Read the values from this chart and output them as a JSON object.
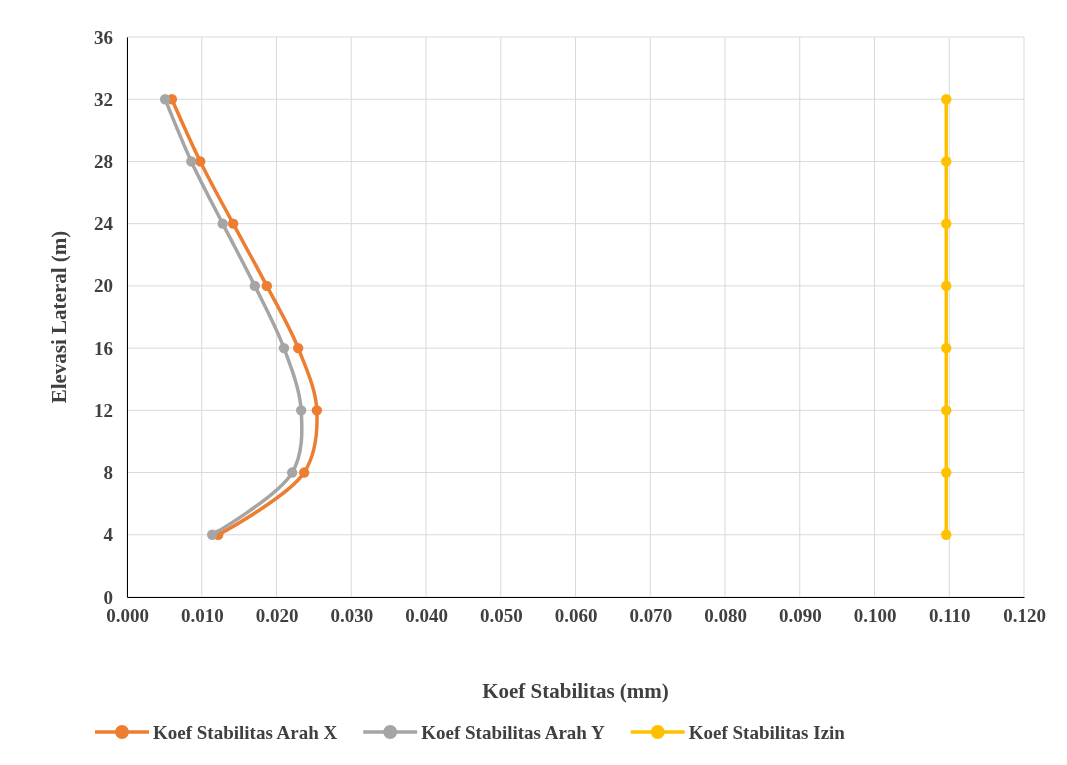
{
  "chart_data": {
    "type": "line",
    "xlabel": "Koef Stabilitas (mm)",
    "ylabel": "Elevasi Lateral (m)",
    "xlim": [
      0,
      0.12
    ],
    "xticks": [
      {
        "value": 0,
        "label": "0.000"
      },
      {
        "value": 0.01,
        "label": "0.010"
      },
      {
        "value": 0.02,
        "label": "0.020"
      },
      {
        "value": 0.03,
        "label": "0.030"
      },
      {
        "value": 0.04,
        "label": "0.040"
      },
      {
        "value": 0.05,
        "label": "0.050"
      },
      {
        "value": 0.06,
        "label": "0.060"
      },
      {
        "value": 0.07,
        "label": "0.070"
      },
      {
        "value": 0.08,
        "label": "0.080"
      },
      {
        "value": 0.09,
        "label": "0.090"
      },
      {
        "value": 0.1,
        "label": "0.100"
      },
      {
        "value": 0.11,
        "label": "0.110"
      },
      {
        "value": 0.12,
        "label": "0.120"
      }
    ],
    "ylim": [
      0,
      36
    ],
    "yticks": [
      0,
      4,
      8,
      12,
      16,
      20,
      24,
      28,
      32,
      36
    ],
    "grid": true,
    "legend": "bottom",
    "marker": "circle",
    "line_style": "solid",
    "series": [
      {
        "name": "Koef Stabilitas Arah X",
        "color": "#ed7d31",
        "x": [
          0.006,
          0.0098,
          0.0142,
          0.0187,
          0.0229,
          0.0254,
          0.0237,
          0.0122
        ],
        "values": [
          32,
          28,
          24,
          20,
          16,
          12,
          8,
          4
        ]
      },
      {
        "name": "Koef Stabilitas Arah Y",
        "color": "#a5a5a5",
        "x": [
          0.0051,
          0.0086,
          0.0128,
          0.0171,
          0.021,
          0.0233,
          0.0221,
          0.0114
        ],
        "values": [
          32,
          28,
          24,
          20,
          16,
          12,
          8,
          4
        ]
      },
      {
        "name": "Koef Stabilitas Izin",
        "color": "#ffc000",
        "x": [
          0.1096,
          0.1096,
          0.1096,
          0.1096,
          0.1096,
          0.1096,
          0.1096,
          0.1096
        ],
        "values": [
          32,
          28,
          24,
          20,
          16,
          12,
          8,
          4
        ]
      }
    ]
  }
}
